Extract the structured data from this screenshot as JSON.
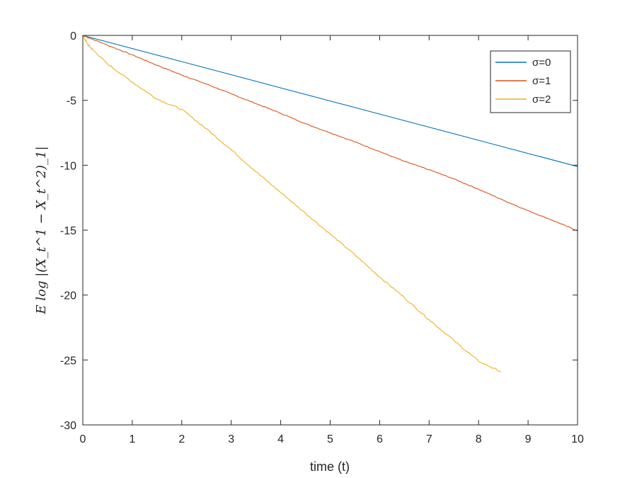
{
  "chart_data": {
    "type": "line",
    "xlabel": "time (t)",
    "ylabel": "E log |(X_t^1 − X_t^2)_1|",
    "xlim": [
      0,
      10
    ],
    "ylim": [
      -30,
      0
    ],
    "xticks": [
      "0",
      "1",
      "2",
      "3",
      "4",
      "5",
      "6",
      "7",
      "8",
      "9",
      "10"
    ],
    "yticks": [
      "0",
      "-5",
      "-10",
      "-15",
      "-20",
      "-25",
      "-30"
    ],
    "grid": false,
    "legend_position": "top-right",
    "series": [
      {
        "name": "σ=0",
        "color": "#0072bd",
        "x": [
          0,
          2,
          4,
          6,
          8,
          10
        ],
        "y": [
          0,
          -2.02,
          -4.04,
          -6.06,
          -8.08,
          -10.1
        ]
      },
      {
        "name": "σ=1",
        "color": "#d95319",
        "x": [
          0,
          0.5,
          1,
          1.5,
          2,
          2.5,
          3,
          3.5,
          4,
          4.5,
          5,
          5.5,
          6,
          6.5,
          7,
          7.5,
          8,
          8.5,
          9,
          9.5,
          10
        ],
        "y": [
          0,
          -0.75,
          -1.5,
          -2.3,
          -3.05,
          -3.75,
          -4.5,
          -5.25,
          -6.0,
          -6.8,
          -7.5,
          -8.2,
          -8.95,
          -9.7,
          -10.35,
          -11.05,
          -11.85,
          -12.7,
          -13.5,
          -14.25,
          -15.05
        ]
      },
      {
        "name": "σ=2",
        "color": "#edb120",
        "x": [
          0,
          0.1,
          0.2,
          0.5,
          1,
          1.5,
          2,
          2.5,
          3,
          3.5,
          4,
          4.5,
          5,
          5.5,
          6,
          6.5,
          7,
          7.5,
          8,
          8.45
        ],
        "y": [
          0,
          -0.7,
          -1.1,
          -2.2,
          -3.6,
          -4.9,
          -5.7,
          -7.2,
          -8.8,
          -10.5,
          -12.1,
          -13.7,
          -15.3,
          -16.9,
          -18.6,
          -20.2,
          -21.9,
          -23.5,
          -25.1,
          -25.9
        ]
      }
    ]
  }
}
